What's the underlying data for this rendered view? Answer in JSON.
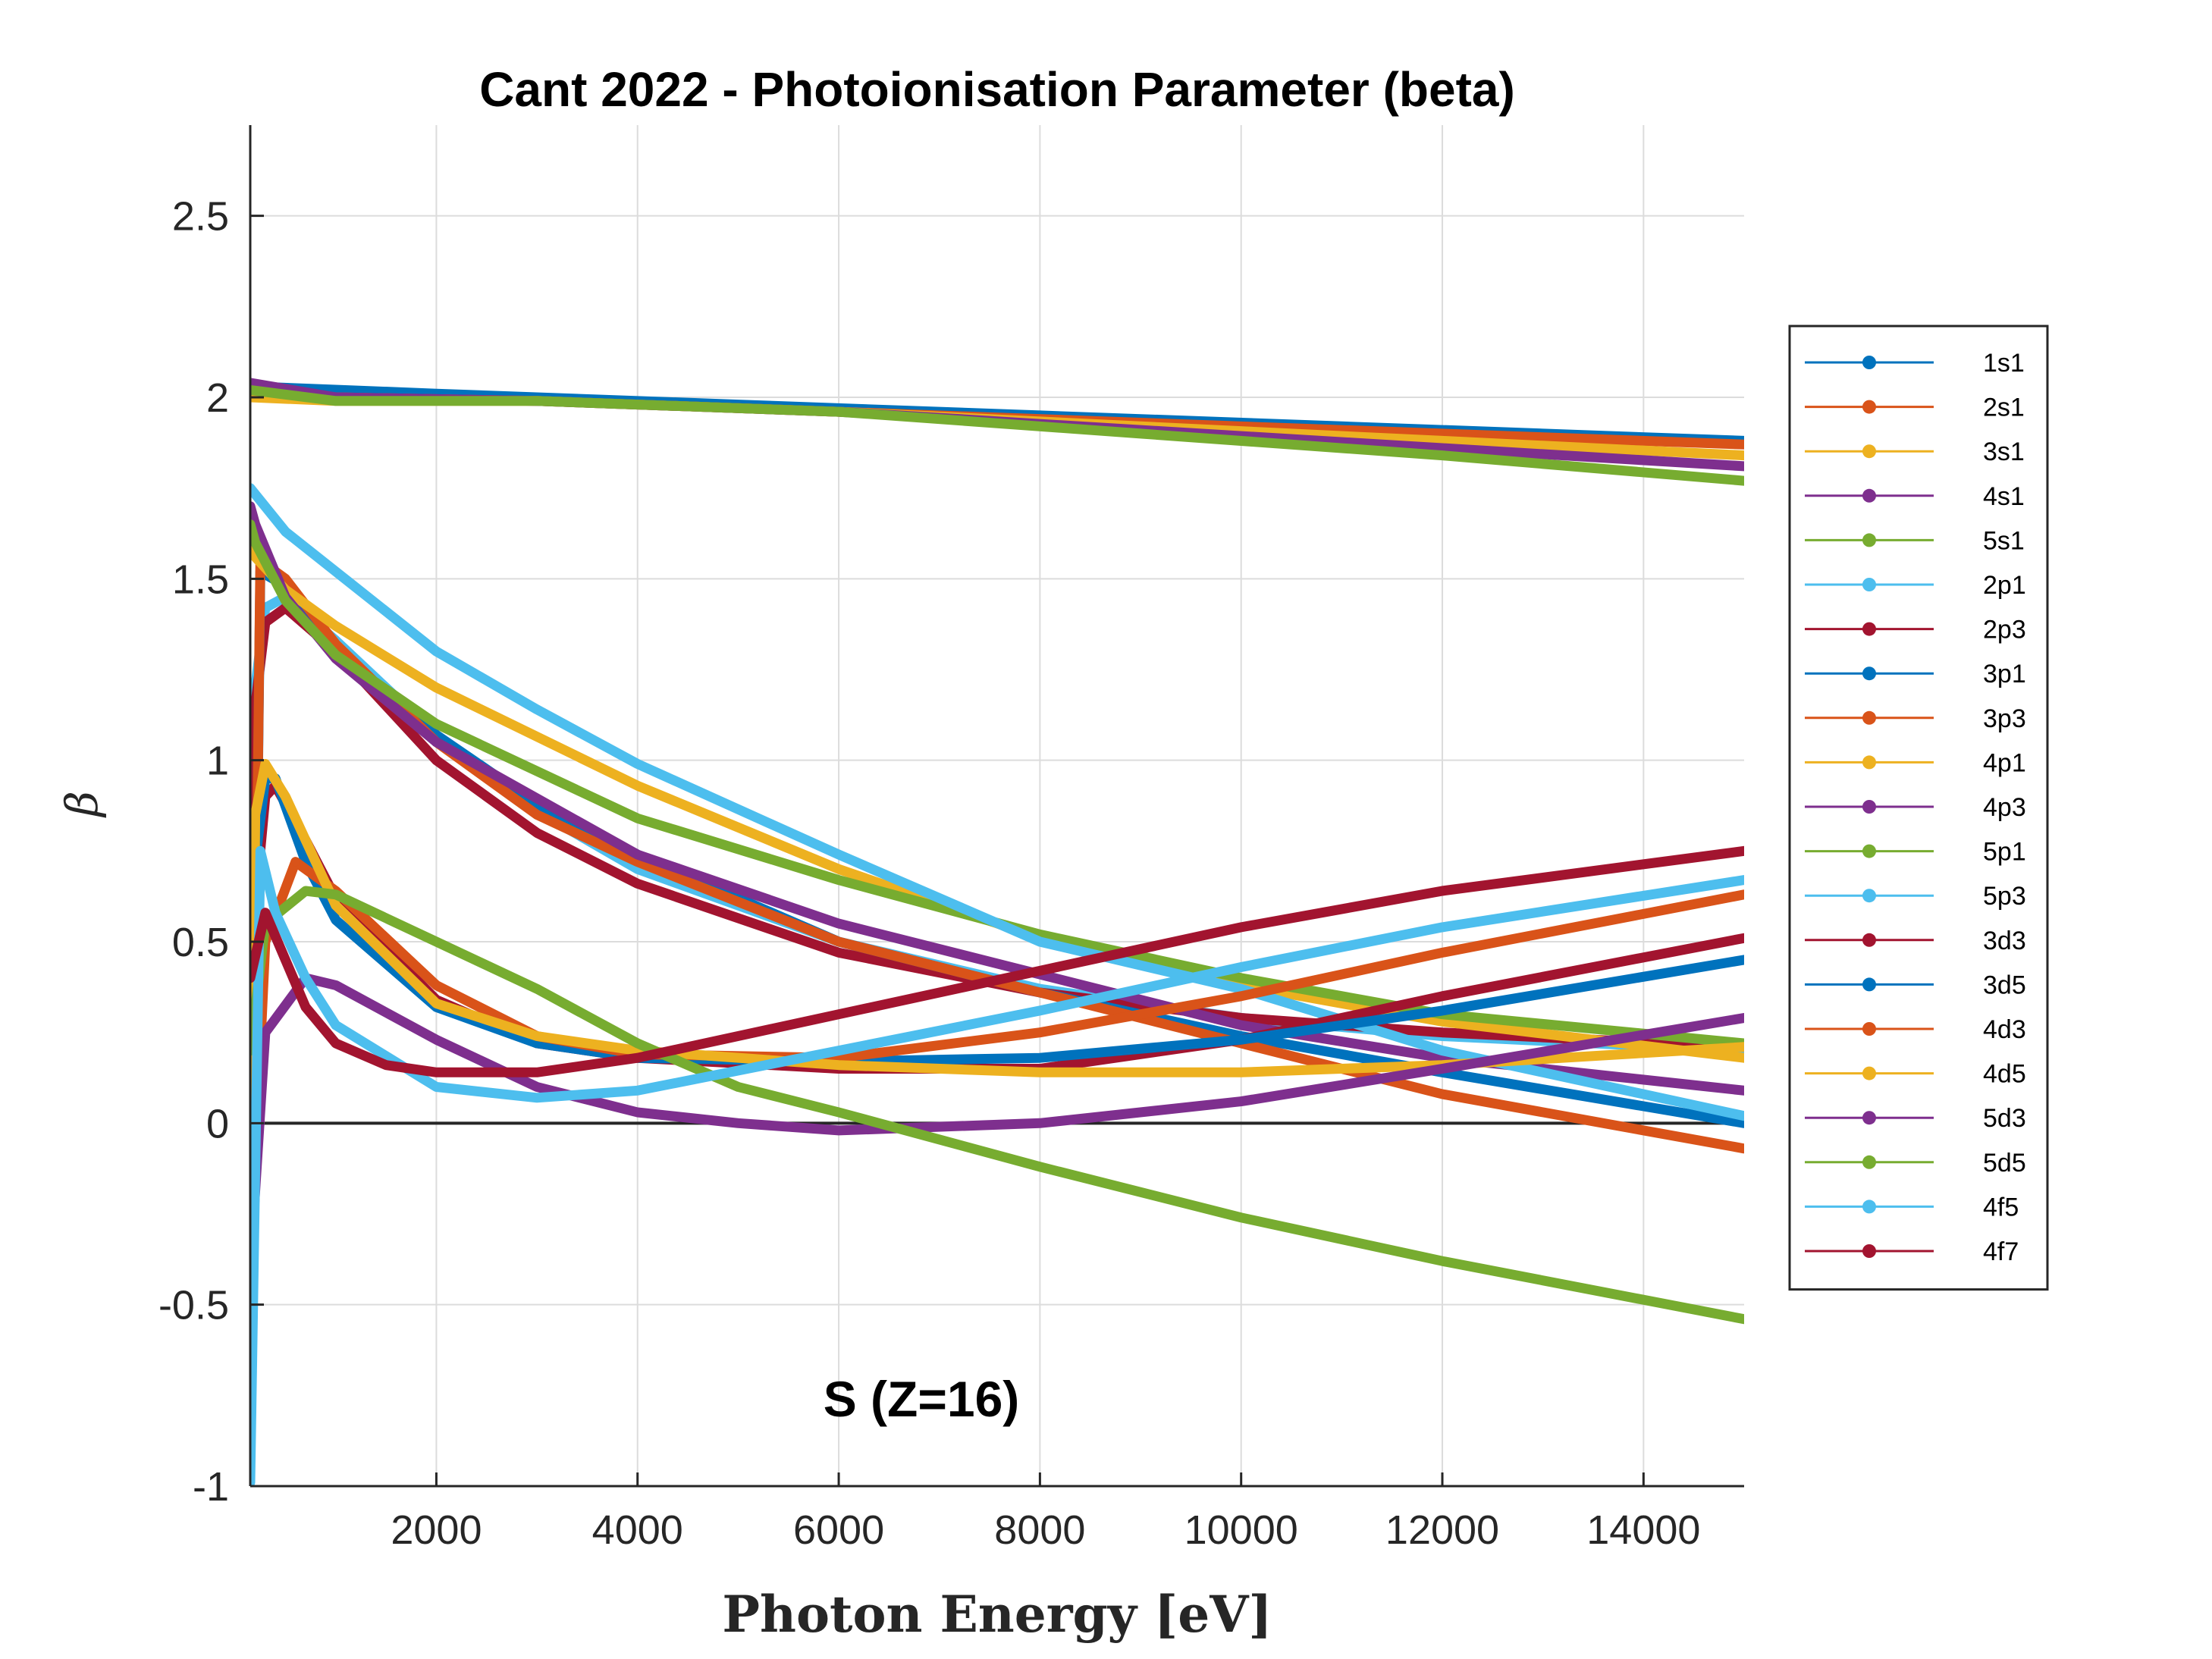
{
  "chart_data": {
    "type": "line",
    "title": "Cant 2022 - Photoionisation Parameter (beta)",
    "xlabel": "Photon Energy [eV]",
    "ylabel": "β",
    "annotation": "S (Z=16)",
    "xlim": [
      150,
      15000
    ],
    "ylim": [
      -1,
      2.75
    ],
    "xticks": [
      2000,
      4000,
      6000,
      8000,
      10000,
      12000,
      14000
    ],
    "yticks": [
      -1,
      -0.5,
      0,
      0.5,
      1,
      1.5,
      2,
      2.5
    ],
    "ytick_labels": [
      "-1",
      "-0.5",
      "0",
      "0.5",
      "1",
      "1.5",
      "2",
      "2.5"
    ],
    "grid": true,
    "legend_position": "right",
    "series": [
      {
        "name": "1s1",
        "color": "#0072BD",
        "x": [
          150,
          2000,
          5000,
          8000,
          11000,
          15000
        ],
        "y": [
          2.03,
          2.01,
          1.98,
          1.95,
          1.92,
          1.88
        ]
      },
      {
        "name": "2s1",
        "color": "#D95319",
        "x": [
          150,
          1000,
          3000,
          6000,
          9000,
          12000,
          15000
        ],
        "y": [
          2.02,
          2.0,
          1.99,
          1.96,
          1.93,
          1.9,
          1.87
        ]
      },
      {
        "name": "3s1",
        "color": "#EDB120",
        "x": [
          150,
          1000,
          3000,
          6000,
          9000,
          12000,
          15000
        ],
        "y": [
          2.0,
          1.99,
          1.99,
          1.96,
          1.92,
          1.88,
          1.84
        ]
      },
      {
        "name": "4s1",
        "color": "#7E2F8E",
        "x": [
          150,
          1000,
          3000,
          6000,
          9000,
          12000,
          15000
        ],
        "y": [
          2.04,
          2.0,
          1.99,
          1.96,
          1.91,
          1.86,
          1.81
        ]
      },
      {
        "name": "5s1",
        "color": "#77AC30",
        "x": [
          150,
          1000,
          3000,
          6000,
          9000,
          12000,
          15000
        ],
        "y": [
          2.02,
          1.99,
          1.99,
          1.96,
          1.9,
          1.84,
          1.77
        ]
      },
      {
        "name": "2p1",
        "color": "#4DBEEE",
        "x": [
          150,
          200,
          300,
          500,
          1000,
          2000,
          3000,
          4000,
          6000,
          8000,
          10000,
          12000,
          15000
        ],
        "y": [
          -0.3,
          1.2,
          1.42,
          1.45,
          1.33,
          1.07,
          0.86,
          0.7,
          0.5,
          0.37,
          0.29,
          0.24,
          0.2
        ]
      },
      {
        "name": "2p3",
        "color": "#A2142F",
        "x": [
          150,
          200,
          300,
          500,
          1000,
          2000,
          3000,
          4000,
          6000,
          8000,
          10000,
          12000,
          15000
        ],
        "y": [
          -0.2,
          1.15,
          1.38,
          1.42,
          1.3,
          1.0,
          0.8,
          0.66,
          0.47,
          0.36,
          0.29,
          0.25,
          0.21
        ]
      },
      {
        "name": "3p1",
        "color": "#0072BD",
        "x": [
          150,
          250,
          500,
          1000,
          2000,
          3000,
          4000,
          6000,
          8000,
          10000,
          12000,
          15000
        ],
        "y": [
          -0.9,
          1.52,
          1.48,
          1.3,
          1.07,
          0.88,
          0.74,
          0.5,
          0.36,
          0.24,
          0.14,
          0.0
        ]
      },
      {
        "name": "3p3",
        "color": "#D95319",
        "x": [
          150,
          250,
          500,
          1000,
          2000,
          3000,
          4000,
          6000,
          8000,
          10000,
          12000,
          15000
        ],
        "y": [
          -0.9,
          1.55,
          1.5,
          1.32,
          1.05,
          0.85,
          0.72,
          0.5,
          0.36,
          0.22,
          0.08,
          -0.07
        ]
      },
      {
        "name": "4p1",
        "color": "#EDB120",
        "x": [
          150,
          200,
          500,
          1000,
          2000,
          4000,
          6000,
          8000,
          10000,
          12000,
          15000
        ],
        "y": [
          1.58,
          1.56,
          1.47,
          1.37,
          1.2,
          0.93,
          0.7,
          0.51,
          0.38,
          0.28,
          0.18
        ]
      },
      {
        "name": "4p3",
        "color": "#7E2F8E",
        "x": [
          150,
          200,
          500,
          1000,
          2000,
          4000,
          6000,
          8000,
          10000,
          12000,
          15000
        ],
        "y": [
          1.7,
          1.65,
          1.45,
          1.28,
          1.05,
          0.74,
          0.55,
          0.41,
          0.27,
          0.18,
          0.09
        ]
      },
      {
        "name": "5p1",
        "color": "#77AC30",
        "x": [
          150,
          200,
          500,
          1000,
          2000,
          4000,
          6000,
          8000,
          10000,
          12000,
          15000
        ],
        "y": [
          1.65,
          1.6,
          1.44,
          1.29,
          1.1,
          0.84,
          0.67,
          0.52,
          0.4,
          0.3,
          0.22
        ]
      },
      {
        "name": "5p3",
        "color": "#4DBEEE",
        "x": [
          150,
          500,
          1000,
          2000,
          3000,
          4000,
          6000,
          8000,
          10000,
          12000,
          15000
        ],
        "y": [
          1.75,
          1.63,
          1.52,
          1.3,
          1.14,
          0.99,
          0.74,
          0.5,
          0.37,
          0.2,
          0.02
        ]
      },
      {
        "name": "3d3",
        "color": "#A2142F",
        "x": [
          150,
          200,
          300,
          400,
          700,
          1000,
          2000,
          3000,
          4000,
          6000,
          8000,
          10000,
          12000,
          15000
        ],
        "y": [
          -0.5,
          0.6,
          0.9,
          0.93,
          0.78,
          0.62,
          0.34,
          0.22,
          0.18,
          0.15,
          0.15,
          0.23,
          0.35,
          0.51
        ]
      },
      {
        "name": "3d5",
        "color": "#0072BD",
        "x": [
          150,
          200,
          300,
          400,
          700,
          1000,
          2000,
          3000,
          4000,
          6000,
          8000,
          10000,
          12000,
          15000
        ],
        "y": [
          -0.3,
          0.72,
          0.95,
          0.95,
          0.72,
          0.56,
          0.32,
          0.22,
          0.18,
          0.17,
          0.18,
          0.23,
          0.31,
          0.45
        ]
      },
      {
        "name": "4d3",
        "color": "#D95319",
        "x": [
          150,
          300,
          600,
          1000,
          2000,
          3000,
          4000,
          6000,
          8000,
          10000,
          12000,
          15000
        ],
        "y": [
          -0.4,
          0.5,
          0.72,
          0.64,
          0.38,
          0.24,
          0.19,
          0.18,
          0.25,
          0.35,
          0.47,
          0.63
        ]
      },
      {
        "name": "4d5",
        "color": "#EDB120",
        "x": [
          150,
          200,
          300,
          500,
          1000,
          2000,
          3000,
          4000,
          6000,
          8000,
          10000,
          12000,
          15000
        ],
        "y": [
          -0.7,
          0.85,
          0.99,
          0.9,
          0.6,
          0.33,
          0.24,
          0.2,
          0.16,
          0.14,
          0.14,
          0.16,
          0.21
        ]
      },
      {
        "name": "5d3",
        "color": "#7E2F8E",
        "x": [
          150,
          300,
          700,
          1000,
          2000,
          3000,
          4000,
          5000,
          6000,
          8000,
          10000,
          12000,
          15000
        ],
        "y": [
          -0.4,
          0.25,
          0.4,
          0.38,
          0.23,
          0.1,
          0.03,
          0.0,
          -0.02,
          0.0,
          0.06,
          0.15,
          0.29
        ]
      },
      {
        "name": "5d5",
        "color": "#77AC30",
        "x": [
          150,
          300,
          700,
          1000,
          2000,
          3000,
          4000,
          5000,
          6000,
          8000,
          10000,
          12000,
          15000
        ],
        "y": [
          0.2,
          0.55,
          0.64,
          0.63,
          0.5,
          0.37,
          0.22,
          0.1,
          0.03,
          -0.12,
          -0.26,
          -0.38,
          -0.54
        ]
      },
      {
        "name": "4f5",
        "color": "#4DBEEE",
        "x": [
          150,
          250,
          400,
          700,
          1000,
          2000,
          3000,
          4000,
          6000,
          8000,
          10000,
          12000,
          15000
        ],
        "y": [
          -0.99,
          0.75,
          0.58,
          0.4,
          0.27,
          0.1,
          0.07,
          0.09,
          0.2,
          0.31,
          0.43,
          0.54,
          0.67
        ]
      },
      {
        "name": "4f7",
        "color": "#A2142F",
        "x": [
          150,
          300,
          500,
          700,
          1000,
          1500,
          2000,
          3000,
          4000,
          6000,
          8000,
          10000,
          12000,
          15000
        ],
        "y": [
          0.4,
          0.58,
          0.45,
          0.32,
          0.22,
          0.16,
          0.14,
          0.14,
          0.18,
          0.3,
          0.42,
          0.54,
          0.64,
          0.75
        ]
      }
    ]
  }
}
